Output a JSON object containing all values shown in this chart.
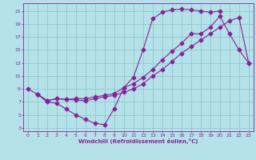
{
  "xlabel": "Windchill (Refroidissement éolien,°C)",
  "bg_color": "#b4e2e8",
  "grid_color": "#8ec8d0",
  "line_color": "#882299",
  "xlim": [
    -0.5,
    23.5
  ],
  "ylim": [
    2.5,
    22.2
  ],
  "xticks": [
    0,
    1,
    2,
    3,
    4,
    5,
    6,
    7,
    8,
    9,
    10,
    11,
    12,
    13,
    14,
    15,
    16,
    17,
    18,
    19,
    20,
    21,
    22,
    23
  ],
  "yticks": [
    3,
    5,
    7,
    9,
    11,
    13,
    15,
    17,
    19,
    21
  ],
  "curve1_x": [
    0,
    1,
    2,
    3,
    4,
    5,
    6,
    7,
    8,
    9,
    10,
    11,
    12,
    13,
    14,
    15,
    16,
    17,
    18,
    19,
    20
  ],
  "curve1_y": [
    9.0,
    8.2,
    7.0,
    6.8,
    5.9,
    5.0,
    4.3,
    3.7,
    3.5,
    6.0,
    9.2,
    10.8,
    15.0,
    19.8,
    20.8,
    21.2,
    21.3,
    21.2,
    21.0,
    20.8,
    21.0
  ],
  "curve2_x": [
    1,
    2,
    3,
    4,
    5,
    6,
    7,
    8,
    9,
    10,
    11,
    12,
    13,
    14,
    15,
    16,
    17,
    18,
    19,
    20,
    21,
    22,
    23
  ],
  "curve2_y": [
    8.2,
    7.2,
    7.5,
    7.4,
    7.5,
    7.5,
    7.8,
    8.0,
    8.3,
    9.2,
    9.8,
    10.8,
    12.0,
    13.5,
    14.8,
    16.0,
    17.5,
    17.5,
    18.5,
    20.2,
    17.5,
    15.0,
    13.0
  ],
  "curve3_x": [
    1,
    2,
    3,
    4,
    5,
    6,
    7,
    8,
    9,
    10,
    11,
    12,
    13,
    14,
    15,
    16,
    17,
    18,
    19,
    20,
    21,
    22,
    23
  ],
  "curve3_y": [
    8.2,
    7.2,
    7.5,
    7.4,
    7.3,
    7.2,
    7.5,
    7.8,
    8.0,
    8.5,
    9.0,
    9.8,
    11.0,
    12.0,
    13.2,
    14.5,
    15.5,
    16.5,
    17.5,
    18.5,
    19.5,
    20.0,
    13.0
  ]
}
